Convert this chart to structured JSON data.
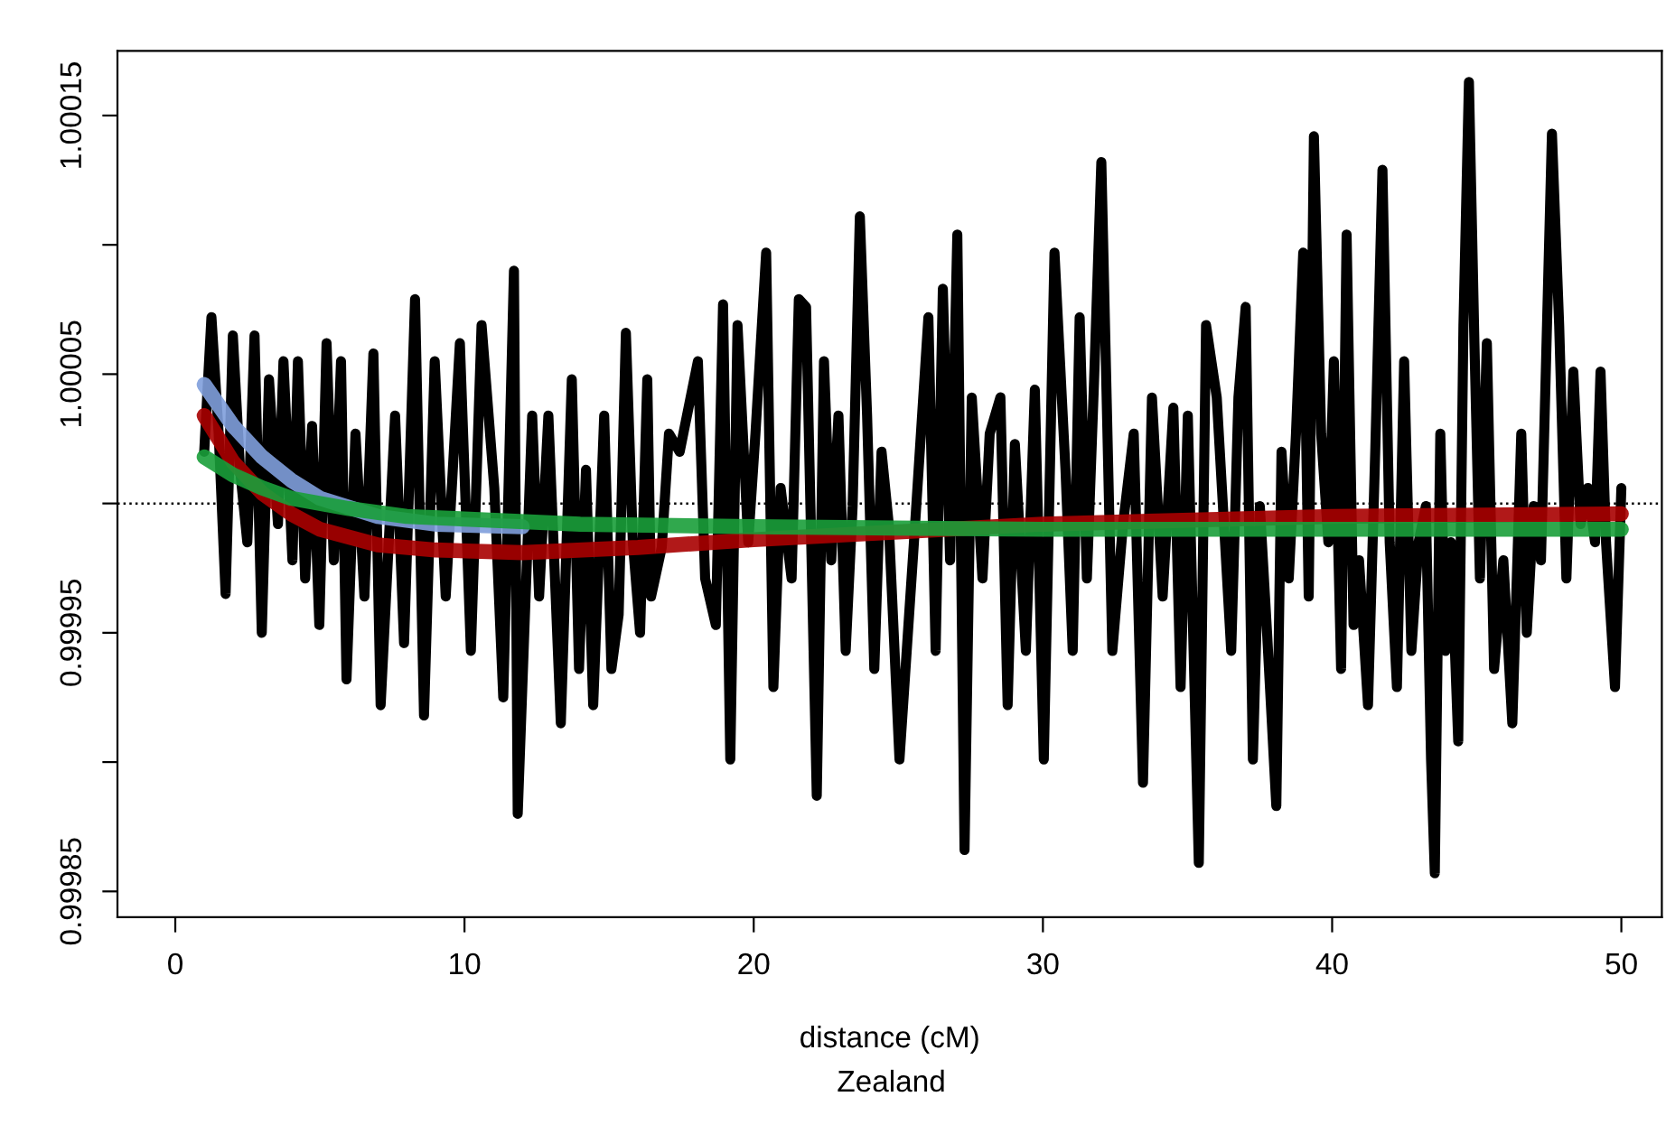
{
  "chart_data": {
    "type": "line",
    "xlabel": "distance (cM)",
    "subtitle": "Zealand",
    "xlim": [
      -2,
      51.4
    ],
    "ylim": [
      0.99984,
      1.000175
    ],
    "xticks": [
      0,
      10,
      20,
      30,
      40,
      50
    ],
    "yticks": [
      {
        "value": 0.99985,
        "label": "0.99985"
      },
      {
        "value": 0.9999,
        "label": null
      },
      {
        "value": 0.99995,
        "label": "0.99995"
      },
      {
        "value": 1.0,
        "label": null
      },
      {
        "value": 1.00005,
        "label": "1.00005"
      },
      {
        "value": 1.0001,
        "label": null
      },
      {
        "value": 1.00015,
        "label": "1.00015"
      }
    ],
    "grid": false,
    "legend": false,
    "line_style": "solid",
    "marker": "none",
    "ref_lines": [
      {
        "axis": "y",
        "value": 1.0,
        "color": "#000000",
        "line_style": "dotted"
      }
    ],
    "series": [
      {
        "color": "#000000",
        "x": [
          1.0,
          1.25,
          1.5,
          1.74,
          1.99,
          2.24,
          2.49,
          2.74,
          2.99,
          3.24,
          3.55,
          3.74,
          4.05,
          4.24,
          4.49,
          4.73,
          4.98,
          5.23,
          5.48,
          5.73,
          5.92,
          6.23,
          6.54,
          6.85,
          7.1,
          7.6,
          7.91,
          8.29,
          8.6,
          8.97,
          9.35,
          9.84,
          10.22,
          10.59,
          11.03,
          11.34,
          11.71,
          11.84,
          12.34,
          12.58,
          12.9,
          13.33,
          13.71,
          13.96,
          14.2,
          14.45,
          14.83,
          15.08,
          15.33,
          15.58,
          15.82,
          16.07,
          16.32,
          16.45,
          16.82,
          17.07,
          17.44,
          18.07,
          18.32,
          18.69,
          18.94,
          19.19,
          19.44,
          19.81,
          20.06,
          20.43,
          20.68,
          20.93,
          21.31,
          21.56,
          21.81,
          22.18,
          22.43,
          22.68,
          22.93,
          23.18,
          23.42,
          23.67,
          23.92,
          24.17,
          24.42,
          24.67,
          25.04,
          25.54,
          26.04,
          26.29,
          26.54,
          26.79,
          27.04,
          27.29,
          27.54,
          27.91,
          28.16,
          28.53,
          28.78,
          29.03,
          29.41,
          29.72,
          30.03,
          30.4,
          30.78,
          31.03,
          31.27,
          31.52,
          31.77,
          32.02,
          32.4,
          32.77,
          33.14,
          33.46,
          33.77,
          34.14,
          34.51,
          34.76,
          35.01,
          35.39,
          35.64,
          36.01,
          36.51,
          36.76,
          37.01,
          37.26,
          37.5,
          37.75,
          38.07,
          38.25,
          38.5,
          38.75,
          39.0,
          39.19,
          39.37,
          39.62,
          39.87,
          40.06,
          40.31,
          40.5,
          40.74,
          40.93,
          41.24,
          41.49,
          41.74,
          41.99,
          42.24,
          42.49,
          42.74,
          42.99,
          43.24,
          43.42,
          43.55,
          43.74,
          43.92,
          44.11,
          44.36,
          44.54,
          44.73,
          44.92,
          45.11,
          45.35,
          45.6,
          45.92,
          46.23,
          46.54,
          46.73,
          46.97,
          47.22,
          47.6,
          47.85,
          48.1,
          48.34,
          48.59,
          48.84,
          49.09,
          49.28,
          49.47,
          49.78,
          50.0
        ],
        "values": [
          1.00002,
          1.000072,
          1.000027,
          0.999965,
          1.000065,
          1.000013,
          0.999985,
          1.000065,
          0.99995,
          1.000048,
          0.999992,
          1.000055,
          0.999978,
          1.000055,
          0.999971,
          1.00003,
          0.999953,
          1.000062,
          0.999978,
          1.000055,
          0.999932,
          1.000027,
          0.999964,
          1.000058,
          0.999922,
          1.000034,
          0.999946,
          1.000079,
          0.999918,
          1.000055,
          0.999964,
          1.000062,
          0.999943,
          1.000069,
          1.000006,
          0.999925,
          1.00009,
          0.99988,
          1.000034,
          0.999964,
          1.000034,
          0.999915,
          1.000048,
          0.999936,
          1.000013,
          0.999922,
          1.000034,
          0.999936,
          0.999957,
          1.000066,
          0.999985,
          0.99995,
          1.000048,
          0.999964,
          0.999983,
          1.000027,
          1.00002,
          1.000055,
          0.999971,
          0.999953,
          1.000077,
          0.999901,
          1.000069,
          0.999985,
          1.000027,
          1.000097,
          0.999929,
          1.000006,
          0.999971,
          1.000079,
          1.000076,
          0.999887,
          1.000055,
          0.999978,
          1.000034,
          0.999943,
          0.999999,
          1.000111,
          1.000034,
          0.999936,
          1.00002,
          0.999992,
          0.999901,
          0.999985,
          1.000072,
          0.999943,
          1.000083,
          0.999978,
          1.000104,
          0.999866,
          1.000041,
          0.999971,
          1.000027,
          1.000041,
          0.999922,
          1.000023,
          0.999943,
          1.000044,
          0.999901,
          1.000097,
          1.000013,
          0.999943,
          1.000072,
          0.999971,
          1.000048,
          1.000132,
          0.999943,
          0.999992,
          1.000027,
          0.999892,
          1.000041,
          0.999964,
          1.000037,
          0.999929,
          1.000034,
          0.999861,
          1.000069,
          1.000041,
          0.999943,
          1.000041,
          1.000076,
          0.999901,
          0.999999,
          0.99995,
          0.999883,
          1.00002,
          0.999971,
          1.000027,
          1.000097,
          0.999964,
          1.000142,
          1.000027,
          0.999985,
          1.000055,
          0.999936,
          1.000104,
          0.999953,
          0.999978,
          0.999922,
          1.00002,
          1.000129,
          0.999985,
          0.999929,
          1.000055,
          0.999943,
          0.999985,
          0.999999,
          0.999901,
          0.999857,
          1.000027,
          0.999943,
          0.999985,
          0.999908,
          1.000069,
          1.000163,
          1.000062,
          0.999971,
          1.000062,
          0.999936,
          0.999978,
          0.999915,
          1.000027,
          0.99995,
          0.999999,
          0.999978,
          1.000143,
          1.000069,
          0.999971,
          1.000051,
          0.999992,
          1.000006,
          0.999985,
          1.000051,
          0.999985,
          0.999929,
          1.000006
        ]
      },
      {
        "color": "#7f9fdc",
        "x": [
          1,
          2,
          3,
          4,
          5,
          7,
          9,
          12
        ],
        "values": [
          1.000046,
          1.00003,
          1.000018,
          1.000009,
          1.000002,
          0.999995,
          0.999992,
          0.999991
        ]
      },
      {
        "color": "#a80000",
        "x": [
          1,
          2,
          3,
          4,
          5,
          7,
          9,
          12,
          16,
          20,
          25,
          30,
          40,
          50
        ],
        "values": [
          1.000034,
          1.000016,
          1.000004,
          0.999996,
          0.99999,
          0.999984,
          0.999982,
          0.999981,
          0.999983,
          0.999986,
          0.999989,
          0.999992,
          0.999995,
          0.999996
        ]
      },
      {
        "color": "#1a9e3a",
        "x": [
          1,
          2,
          3,
          4,
          6,
          8,
          10,
          14,
          20,
          30,
          40,
          50
        ],
        "values": [
          1.000018,
          1.000011,
          1.000006,
          1.000002,
          0.999998,
          0.999995,
          0.999994,
          0.999992,
          0.999991,
          0.99999,
          0.99999,
          0.99999
        ]
      }
    ]
  }
}
